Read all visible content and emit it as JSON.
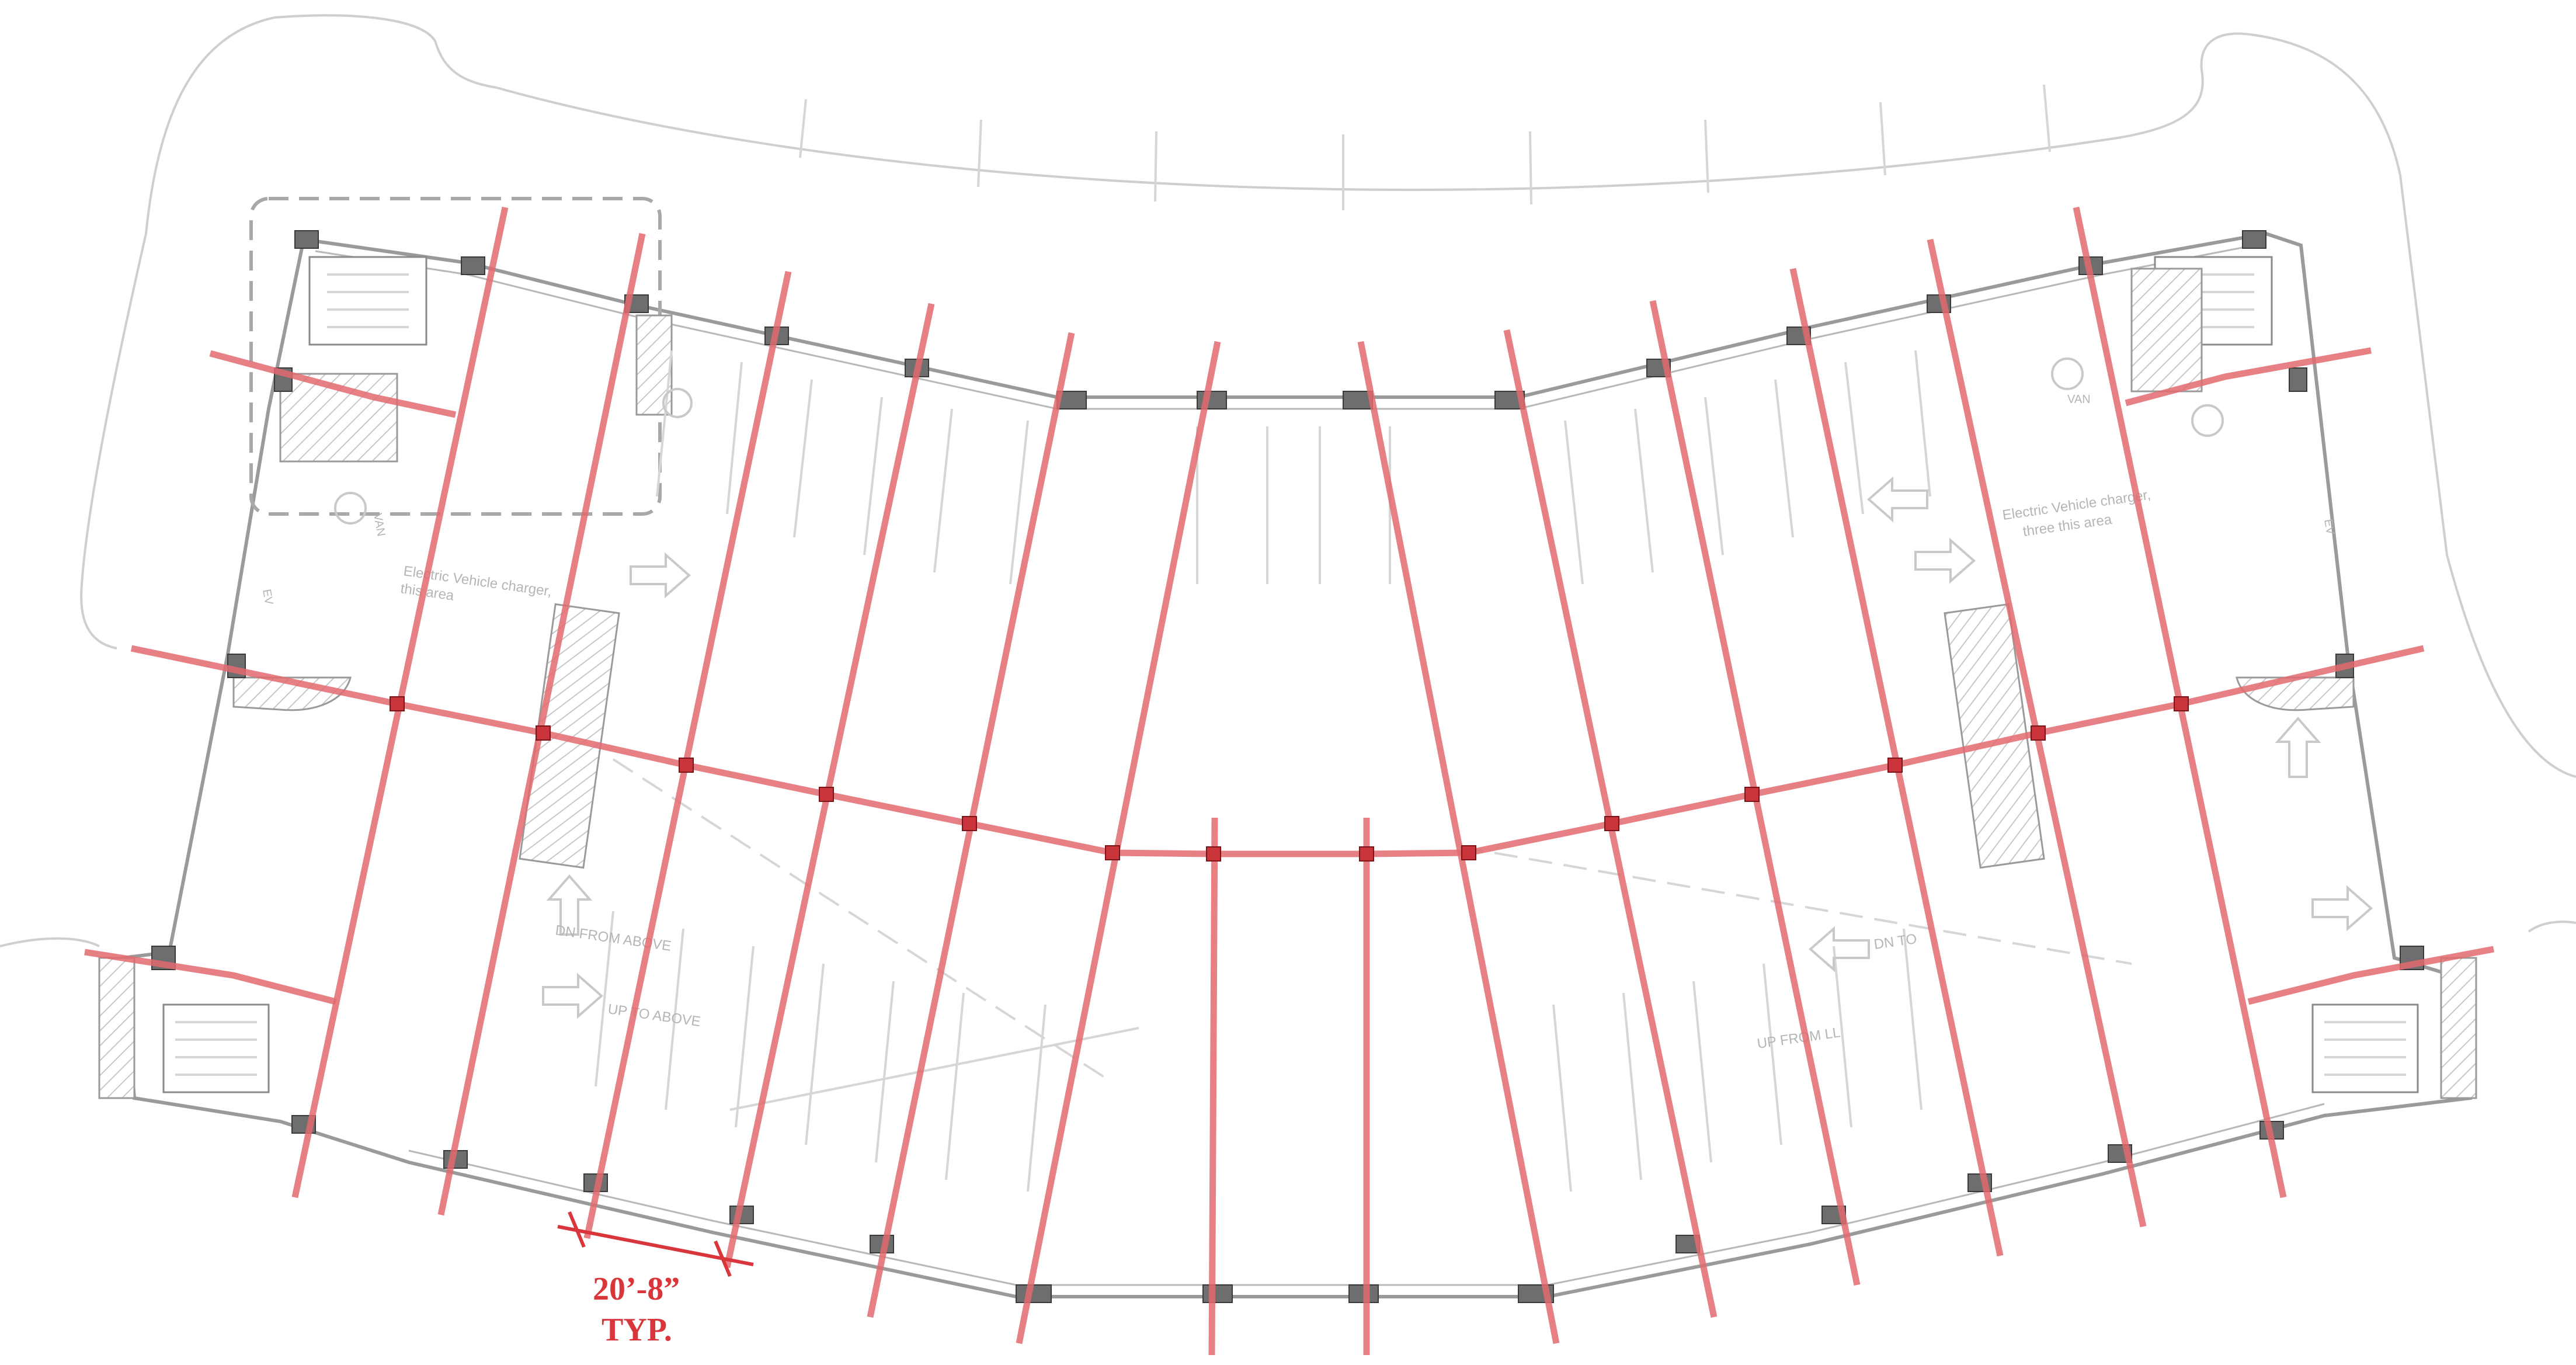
{
  "labels": {
    "ev_left": "Electric Vehicle charger,",
    "ev_left_2": "this area",
    "ev_right": "Electric Vehicle charger,",
    "ev_right_2": "three this area",
    "van_left": "VAN",
    "van_right": "VAN",
    "dn_from_above": "DN FROM ABOVE",
    "up_to_above": "UP TO ABOVE",
    "dn_to": "DN TO",
    "up_from_ll": "UP FROM LL",
    "ev_tag": "EV",
    "ev_tag_2": "EV"
  },
  "dimension": {
    "value": "20’-8”",
    "note": "TYP."
  },
  "colors": {
    "grid": "#e26a6e",
    "grid_node": "#c9353b",
    "dimension": "#d9363c",
    "background_linework": "#cfcfcf",
    "walls": "#9a9a9a"
  }
}
